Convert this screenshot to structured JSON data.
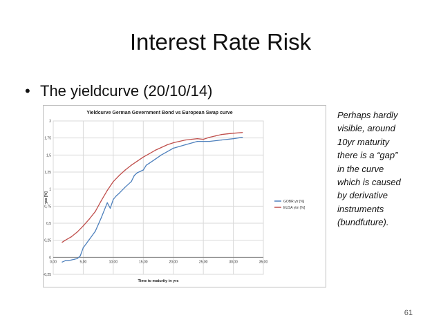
{
  "slide": {
    "title": "Interest Rate Risk",
    "bullet_symbol": "•",
    "bullet_text": "The yieldcurve (20/10/14)",
    "note": "Perhaps hardly\nvisible, around\n10yr maturity\nthere is a “gap”\nin the curve\nwhich is caused\nby derivative\ninstruments\n(bundfuture).",
    "page_number": "61"
  },
  "chart_data": {
    "type": "line",
    "title": "Yieldcurve German Government Bond vs European Swap curve",
    "xlabel": "Time to maturity in yrs",
    "ylabel": "yes [%]",
    "xlim": [
      0,
      35
    ],
    "ylim": [
      -0.25,
      2
    ],
    "x_ticks": [
      "0,00",
      "5,00",
      "10,00",
      "15,00",
      "20,00",
      "25,00",
      "30,00",
      "35,00"
    ],
    "y_ticks": [
      "-0,25",
      "0",
      "0,25",
      "0,5",
      "0,75",
      "1",
      "1,25",
      "1,5",
      "1,75",
      "2"
    ],
    "grid": true,
    "legend_position": "right",
    "series": [
      {
        "name": "GOBR ytr [%]",
        "color": "#4f81bd",
        "x": [
          1.5,
          2,
          2.5,
          3,
          3.5,
          4,
          4.5,
          5,
          5.5,
          6,
          7,
          8,
          9,
          9.5,
          10,
          10.5,
          11,
          12,
          13,
          13.5,
          14,
          15,
          15.5,
          16,
          17,
          18,
          19,
          20,
          22,
          24,
          25,
          26,
          28,
          30,
          31.5
        ],
        "y": [
          -0.07,
          -0.05,
          -0.05,
          -0.04,
          -0.03,
          -0.02,
          0.02,
          0.14,
          0.2,
          0.26,
          0.38,
          0.58,
          0.8,
          0.72,
          0.85,
          0.9,
          0.94,
          1.03,
          1.11,
          1.2,
          1.24,
          1.28,
          1.35,
          1.38,
          1.44,
          1.5,
          1.55,
          1.6,
          1.65,
          1.7,
          1.7,
          1.7,
          1.72,
          1.74,
          1.76
        ]
      },
      {
        "name": "EUSA ytm [%]",
        "color": "#c0504d",
        "x": [
          1.5,
          2,
          3,
          4,
          5,
          6,
          7,
          8,
          9,
          10,
          11,
          12,
          13,
          14,
          15,
          16,
          17,
          18,
          19,
          20,
          21,
          22,
          23,
          24,
          25,
          26,
          27,
          28,
          29,
          30,
          31.5
        ],
        "y": [
          0.22,
          0.25,
          0.3,
          0.37,
          0.46,
          0.56,
          0.67,
          0.83,
          0.98,
          1.11,
          1.2,
          1.28,
          1.35,
          1.41,
          1.47,
          1.52,
          1.57,
          1.61,
          1.65,
          1.68,
          1.7,
          1.72,
          1.73,
          1.74,
          1.73,
          1.76,
          1.78,
          1.8,
          1.81,
          1.82,
          1.83
        ]
      }
    ]
  }
}
